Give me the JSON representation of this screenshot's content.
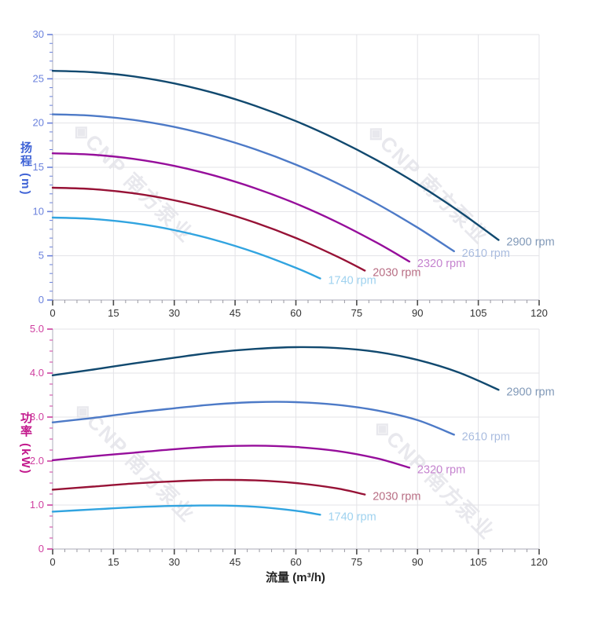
{
  "figure": {
    "watermark_text": "◈CNP 南方泵业",
    "watermark_color": "#e8e8ed",
    "background": "#ffffff",
    "grid_color": "#e3e3e7",
    "axis_line_color": "#c6c6cf"
  },
  "chart_data": [
    {
      "type": "line",
      "title": "",
      "xlabel": "",
      "ylabel": "扬程 (m)",
      "ylabel_color": "#3f63d6",
      "ytick_color": "#6b82dd",
      "xtick_color": "#333333",
      "xlim": [
        0,
        120
      ],
      "ylim": [
        0,
        30
      ],
      "xtick_step": 15,
      "xminor_step": 3,
      "ytick_step": 5,
      "yminor_step": 1,
      "ytick_decimals": 0,
      "grid": true,
      "legend_position": "curve-end-labels",
      "series": [
        {
          "name": "2900 rpm",
          "color": "#11496f",
          "label_color": "#8199b8",
          "points": [
            [
              0,
              25.9
            ],
            [
              10,
              25.74
            ],
            [
              20,
              25.27
            ],
            [
              30,
              24.48
            ],
            [
              40,
              23.37
            ],
            [
              50,
              21.95
            ],
            [
              60,
              20.22
            ],
            [
              70,
              18.16
            ],
            [
              80,
              15.79
            ],
            [
              90,
              13.11
            ],
            [
              100,
              10.11
            ],
            [
              110,
              6.79
            ]
          ]
        },
        {
          "name": "2610 rpm",
          "color": "#4d7ac7",
          "label_color": "#a9bcdf",
          "points": [
            [
              0,
              20.98
            ],
            [
              10,
              20.82
            ],
            [
              20,
              20.35
            ],
            [
              30,
              19.56
            ],
            [
              40,
              18.45
            ],
            [
              50,
              17.03
            ],
            [
              60,
              15.3
            ],
            [
              70,
              13.24
            ],
            [
              80,
              10.87
            ],
            [
              90,
              8.19
            ],
            [
              99,
              5.51
            ]
          ]
        },
        {
          "name": "2320 rpm",
          "color": "#960e9b",
          "label_color": "#c583cf",
          "points": [
            [
              0,
              16.58
            ],
            [
              10,
              16.42
            ],
            [
              20,
              15.95
            ],
            [
              30,
              15.16
            ],
            [
              40,
              14.05
            ],
            [
              50,
              12.63
            ],
            [
              60,
              10.9
            ],
            [
              70,
              8.84
            ],
            [
              80,
              6.47
            ],
            [
              88,
              4.35
            ]
          ]
        },
        {
          "name": "2030 rpm",
          "color": "#971236",
          "label_color": "#b86e84",
          "points": [
            [
              0,
              12.69
            ],
            [
              10,
              12.53
            ],
            [
              20,
              12.06
            ],
            [
              30,
              11.27
            ],
            [
              40,
              10.16
            ],
            [
              50,
              8.74
            ],
            [
              60,
              7.01
            ],
            [
              70,
              4.95
            ],
            [
              77,
              3.33
            ]
          ]
        },
        {
          "name": "1740 rpm",
          "color": "#31a4e0",
          "label_color": "#9fd2ef",
          "points": [
            [
              0,
              9.32
            ],
            [
              10,
              9.16
            ],
            [
              20,
              8.69
            ],
            [
              30,
              7.9
            ],
            [
              40,
              6.79
            ],
            [
              50,
              5.37
            ],
            [
              60,
              3.64
            ],
            [
              66,
              2.44
            ]
          ]
        }
      ]
    },
    {
      "type": "line",
      "title": "",
      "xlabel": "流量 (m³/h)",
      "xlabel_color": "#222222",
      "ylabel": "功率 (kW)",
      "ylabel_color": "#c2188c",
      "ytick_color": "#cf3fa0",
      "xtick_color": "#333333",
      "xlim": [
        0,
        120
      ],
      "ylim": [
        0,
        5.0
      ],
      "xtick_step": 15,
      "xminor_step": 3,
      "ytick_step": 1,
      "yminor_step": 0.25,
      "ytick_decimals": 1,
      "grid": true,
      "legend_position": "curve-end-labels",
      "series": [
        {
          "name": "2900 rpm",
          "color": "#11496f",
          "label_color": "#8199b8",
          "points": [
            [
              0,
              3.95
            ],
            [
              10,
              4.08
            ],
            [
              20,
              4.22
            ],
            [
              30,
              4.35
            ],
            [
              40,
              4.47
            ],
            [
              50,
              4.55
            ],
            [
              60,
              4.59
            ],
            [
              70,
              4.57
            ],
            [
              80,
              4.48
            ],
            [
              90,
              4.3
            ],
            [
              100,
              4.02
            ],
            [
              110,
              3.62
            ]
          ]
        },
        {
          "name": "2610 rpm",
          "color": "#4d7ac7",
          "label_color": "#a9bcdf",
          "points": [
            [
              0,
              2.88
            ],
            [
              10,
              2.98
            ],
            [
              20,
              3.1
            ],
            [
              30,
              3.2
            ],
            [
              40,
              3.29
            ],
            [
              50,
              3.34
            ],
            [
              60,
              3.34
            ],
            [
              70,
              3.28
            ],
            [
              80,
              3.15
            ],
            [
              90,
              2.93
            ],
            [
              99,
              2.6
            ]
          ]
        },
        {
          "name": "2320 rpm",
          "color": "#960e9b",
          "label_color": "#c583cf",
          "points": [
            [
              0,
              2.02
            ],
            [
              10,
              2.11
            ],
            [
              20,
              2.19
            ],
            [
              30,
              2.27
            ],
            [
              40,
              2.33
            ],
            [
              50,
              2.35
            ],
            [
              60,
              2.32
            ],
            [
              70,
              2.23
            ],
            [
              80,
              2.06
            ],
            [
              88,
              1.85
            ]
          ]
        },
        {
          "name": "2030 rpm",
          "color": "#971236",
          "label_color": "#b86e84",
          "points": [
            [
              0,
              1.35
            ],
            [
              10,
              1.42
            ],
            [
              20,
              1.49
            ],
            [
              30,
              1.54
            ],
            [
              40,
              1.57
            ],
            [
              50,
              1.56
            ],
            [
              60,
              1.5
            ],
            [
              70,
              1.38
            ],
            [
              77,
              1.24
            ]
          ]
        },
        {
          "name": "1740 rpm",
          "color": "#31a4e0",
          "label_color": "#9fd2ef",
          "points": [
            [
              0,
              0.85
            ],
            [
              10,
              0.9
            ],
            [
              20,
              0.95
            ],
            [
              30,
              0.98
            ],
            [
              40,
              0.99
            ],
            [
              50,
              0.96
            ],
            [
              60,
              0.87
            ],
            [
              66,
              0.78
            ]
          ]
        }
      ]
    }
  ]
}
